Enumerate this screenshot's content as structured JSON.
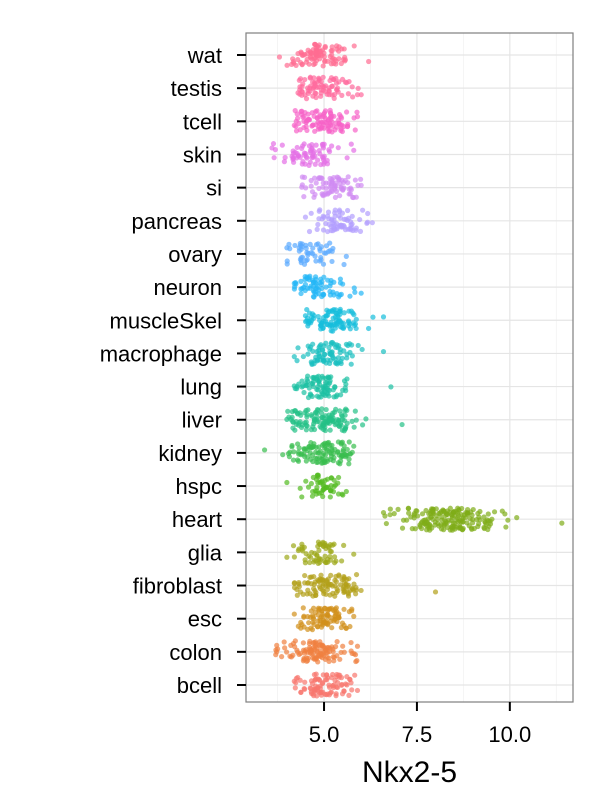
{
  "chart_data": {
    "type": "scatter",
    "subtype": "jitter-strip",
    "xlabel": "Nkx2-5",
    "ylabel": "",
    "title": "",
    "xlim": [
      2.9,
      11.7
    ],
    "x_ticks": [
      5.0,
      7.5,
      10.0
    ],
    "x_tick_labels": [
      "5.0",
      "7.5",
      "10.0"
    ],
    "grid": true,
    "legend": "none",
    "categories": [
      "wat",
      "testis",
      "tcell",
      "skin",
      "si",
      "pancreas",
      "ovary",
      "neuron",
      "muscleSkel",
      "macrophage",
      "lung",
      "liver",
      "kidney",
      "hspc",
      "heart",
      "glia",
      "fibroblast",
      "esc",
      "colon",
      "bcell"
    ],
    "series": [
      {
        "category": "wat",
        "color": "#FF6C91",
        "center": 4.9,
        "spread": 0.45,
        "n": 90,
        "range": [
          3.8,
          6.2
        ]
      },
      {
        "category": "testis",
        "color": "#FF699C",
        "center": 4.9,
        "spread": 0.4,
        "n": 80,
        "range": [
          4.3,
          6.0
        ]
      },
      {
        "category": "tcell",
        "color": "#F763C7",
        "center": 4.95,
        "spread": 0.45,
        "n": 100,
        "range": [
          4.2,
          5.9
        ]
      },
      {
        "category": "skin",
        "color": "#E46FE5",
        "center": 4.6,
        "spread": 0.45,
        "n": 70,
        "range": [
          3.6,
          5.8
        ]
      },
      {
        "category": "si",
        "color": "#D08AF2",
        "center": 5.15,
        "spread": 0.4,
        "n": 75,
        "range": [
          4.4,
          6.0
        ]
      },
      {
        "category": "pancreas",
        "color": "#B29EFE",
        "center": 5.45,
        "spread": 0.4,
        "n": 70,
        "range": [
          4.5,
          6.3
        ]
      },
      {
        "category": "ovary",
        "color": "#5AA9FF",
        "center": 4.6,
        "spread": 0.4,
        "n": 50,
        "range": [
          4.0,
          5.6
        ]
      },
      {
        "category": "neuron",
        "color": "#24B7F6",
        "center": 4.85,
        "spread": 0.4,
        "n": 70,
        "range": [
          4.2,
          6.0
        ]
      },
      {
        "category": "muscleSkel",
        "color": "#16BEDB",
        "center": 5.2,
        "spread": 0.4,
        "n": 90,
        "range": [
          4.5,
          6.6
        ]
      },
      {
        "category": "macrophage",
        "color": "#1ABFC0",
        "center": 4.95,
        "spread": 0.4,
        "n": 80,
        "range": [
          4.2,
          6.6
        ]
      },
      {
        "category": "lung",
        "color": "#1BC1A3",
        "center": 4.95,
        "spread": 0.4,
        "n": 80,
        "range": [
          4.2,
          6.8
        ]
      },
      {
        "category": "liver",
        "color": "#23C186",
        "center": 4.95,
        "spread": 0.5,
        "n": 120,
        "range": [
          4.0,
          7.1
        ]
      },
      {
        "category": "kidney",
        "color": "#39BD4F",
        "center": 4.8,
        "spread": 0.5,
        "n": 110,
        "range": [
          3.4,
          5.8
        ]
      },
      {
        "category": "hspc",
        "color": "#52BA21",
        "center": 4.9,
        "spread": 0.35,
        "n": 50,
        "range": [
          4.0,
          5.6
        ]
      },
      {
        "category": "heart",
        "color": "#7FAD18",
        "center": 8.35,
        "spread": 0.7,
        "n": 180,
        "range": [
          6.6,
          11.4
        ]
      },
      {
        "category": "glia",
        "color": "#9CA818",
        "center": 4.9,
        "spread": 0.35,
        "n": 60,
        "range": [
          4.0,
          5.8
        ]
      },
      {
        "category": "fibroblast",
        "color": "#B29F18",
        "center": 5.1,
        "spread": 0.45,
        "n": 100,
        "range": [
          4.2,
          8.0
        ]
      },
      {
        "category": "esc",
        "color": "#D1901B",
        "center": 4.95,
        "spread": 0.4,
        "n": 90,
        "range": [
          4.2,
          5.8
        ]
      },
      {
        "category": "colon",
        "color": "#EF8040",
        "center": 4.8,
        "spread": 0.45,
        "n": 110,
        "range": [
          3.7,
          5.9
        ]
      },
      {
        "category": "bcell",
        "color": "#F8766D",
        "center": 4.95,
        "spread": 0.4,
        "n": 90,
        "range": [
          4.2,
          5.9
        ]
      }
    ]
  }
}
